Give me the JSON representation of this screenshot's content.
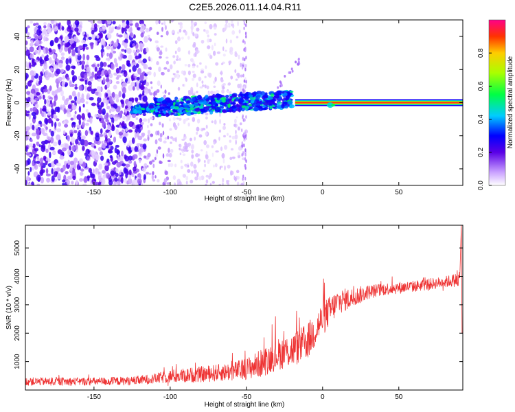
{
  "title": "C2E5.2026.011.14.04.R11",
  "chart_data": [
    {
      "type": "heatmap",
      "panel": "top",
      "xlabel": "Height of straight line (km)",
      "ylabel": "Frequency (Hz)",
      "xlim": [
        -195,
        92
      ],
      "ylim": [
        -50,
        50
      ],
      "xticks": [
        "-150",
        "-100",
        "-50",
        "0",
        "50"
      ],
      "xtick_values": [
        -150,
        -100,
        -50,
        0,
        50
      ],
      "yticks": [
        "-40",
        "-20",
        "0",
        "20",
        "40"
      ],
      "ytick_values": [
        -40,
        -20,
        0,
        20,
        40
      ],
      "colorbar": {
        "label": "Normalized spectral amplitude",
        "ticks": [
          "0.0",
          "0.2",
          "0.4",
          "0.6",
          "0.8"
        ],
        "tick_values": [
          0.0,
          0.2,
          0.4,
          0.6,
          0.8
        ],
        "range": [
          0,
          1
        ],
        "colormap": "rainbow"
      },
      "features": [
        {
          "name": "broadband noise",
          "x_range": [
            -195,
            -115
          ],
          "freq_range": [
            -50,
            50
          ],
          "amplitude": 0.05
        },
        {
          "name": "scattered noise",
          "x_range": [
            -115,
            -50
          ],
          "freq_range": [
            -50,
            50
          ],
          "amplitude": 0.02
        },
        {
          "name": "signal band",
          "x_range": [
            -125,
            -20
          ],
          "freq_range": [
            -6,
            6
          ],
          "amplitude": 0.2
        },
        {
          "name": "tone line",
          "x_range": [
            -18,
            92
          ],
          "freq": 0,
          "amplitude": 1.0
        },
        {
          "name": "drift streak",
          "x_range": [
            -30,
            -15
          ],
          "freq_range": [
            10,
            30
          ],
          "amplitude": 0.05
        }
      ]
    },
    {
      "type": "line",
      "panel": "bottom",
      "xlabel": "Height of straight line (km)",
      "ylabel": "SNR (10 * v/v)",
      "xlim": [
        -195,
        92
      ],
      "ylim": [
        0,
        5800
      ],
      "xticks": [
        "-150",
        "-100",
        "-50",
        "0",
        "50"
      ],
      "xtick_values": [
        -150,
        -100,
        -50,
        0,
        50
      ],
      "yticks": [
        "1000",
        "2000",
        "3000",
        "4000",
        "5000"
      ],
      "ytick_values": [
        1000,
        2000,
        3000,
        4000,
        5000
      ],
      "color": "#ee3333",
      "series": [
        {
          "name": "SNR",
          "x": [
            -195,
            -150,
            -125,
            -110,
            -100,
            -80,
            -60,
            -50,
            -40,
            -30,
            -20,
            -10,
            0,
            10,
            20,
            30,
            40,
            60,
            80,
            90
          ],
          "values": [
            300,
            300,
            320,
            400,
            480,
            550,
            650,
            750,
            950,
            1250,
            1400,
            1700,
            2500,
            3100,
            3250,
            3450,
            3550,
            3650,
            3800,
            3900
          ],
          "noise_amplitude": [
            140,
            140,
            150,
            180,
            230,
            280,
            320,
            380,
            500,
            550,
            600,
            650,
            600,
            450,
            350,
            250,
            220,
            200,
            200,
            250
          ]
        }
      ],
      "endpoint_spike": {
        "x": 91,
        "value": 5800
      }
    }
  ]
}
